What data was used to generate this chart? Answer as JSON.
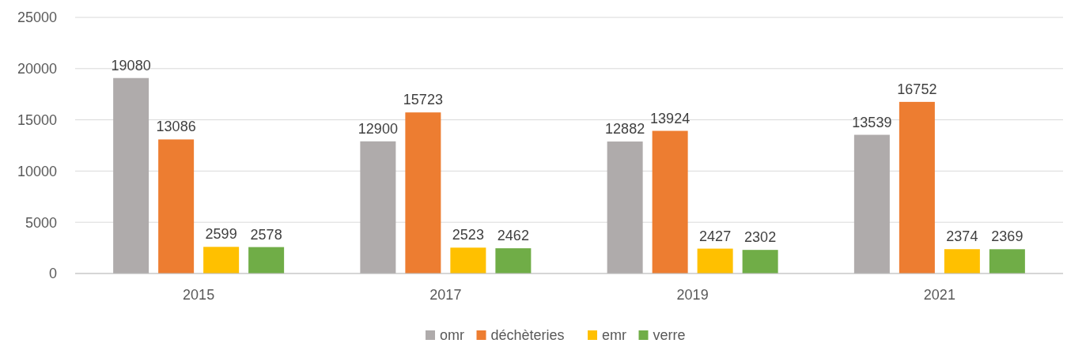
{
  "chart_data": {
    "type": "bar",
    "categories": [
      "2015",
      "2017",
      "2019",
      "2021"
    ],
    "series": [
      {
        "name": "omr",
        "color": "#afabab",
        "values": [
          19080,
          12900,
          12882,
          13539
        ]
      },
      {
        "name": "déchèteries",
        "color": "#ed7d31",
        "values": [
          13086,
          15723,
          13924,
          16752
        ]
      },
      {
        "name": "emr",
        "color": "#ffc000",
        "values": [
          2599,
          2523,
          2427,
          2374
        ]
      },
      {
        "name": "verre",
        "color": "#70ad47",
        "values": [
          2578,
          2462,
          2302,
          2369
        ]
      }
    ],
    "ylim": [
      0,
      25000
    ],
    "yticks": [
      0,
      5000,
      10000,
      15000,
      20000,
      25000
    ],
    "grid": "y",
    "legend": "bottom",
    "data_labels": true
  }
}
